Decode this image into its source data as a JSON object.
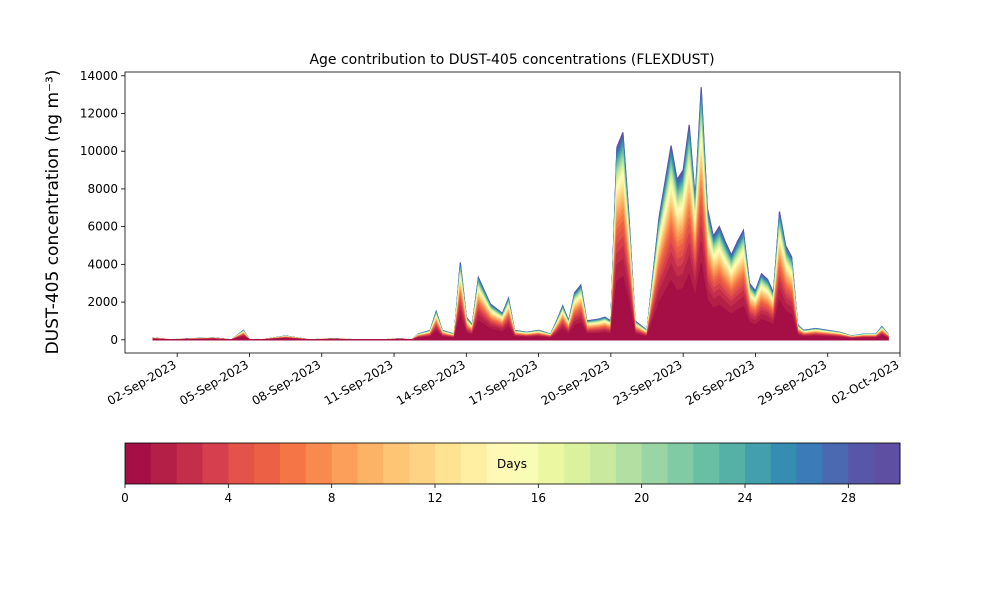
{
  "chart_data": {
    "type": "area",
    "title": "Age contribution to DUST-405 concentrations (FLEXDUST)",
    "ylabel": "DUST-405 concentration (ng m⁻³)",
    "xlabel": "",
    "ylim": [
      -700,
      14200
    ],
    "xlim": [
      "2023-08-30T20:00",
      "2023-10-02T00:00"
    ],
    "yticks": [
      0,
      2000,
      4000,
      6000,
      8000,
      10000,
      12000,
      14000
    ],
    "xtick_dates": [
      "2023-09-02",
      "2023-09-05",
      "2023-09-08",
      "2023-09-11",
      "2023-09-14",
      "2023-09-17",
      "2023-09-20",
      "2023-09-23",
      "2023-09-26",
      "2023-09-29",
      "2023-10-02"
    ],
    "xtick_labels": [
      "02-Sep-2023",
      "05-Sep-2023",
      "08-Sep-2023",
      "11-Sep-2023",
      "14-Sep-2023",
      "17-Sep-2023",
      "20-Sep-2023",
      "23-Sep-2023",
      "26-Sep-2023",
      "29-Sep-2023",
      "02-Oct-2023"
    ],
    "total": {
      "x": [
        "2023-09-01T00:00",
        "2023-09-01T18:00",
        "2023-09-02T12:00",
        "2023-09-03T12:00",
        "2023-09-04T06:00",
        "2023-09-04T18:00",
        "2023-09-05T00:00",
        "2023-09-05T12:00",
        "2023-09-06T12:00",
        "2023-09-07T12:00",
        "2023-09-08T12:00",
        "2023-09-09T12:00",
        "2023-09-10T12:00",
        "2023-09-11T06:00",
        "2023-09-11T18:00",
        "2023-09-12T00:00",
        "2023-09-12T12:00",
        "2023-09-12T18:00",
        "2023-09-13T00:00",
        "2023-09-13T12:00",
        "2023-09-13T18:00",
        "2023-09-14T00:00",
        "2023-09-14T06:00",
        "2023-09-14T12:00",
        "2023-09-15T00:00",
        "2023-09-15T12:00",
        "2023-09-15T18:00",
        "2023-09-16T00:00",
        "2023-09-16T12:00",
        "2023-09-17T00:00",
        "2023-09-17T12:00",
        "2023-09-17T18:00",
        "2023-09-18T00:00",
        "2023-09-18T06:00",
        "2023-09-18T12:00",
        "2023-09-18T18:00",
        "2023-09-19T00:00",
        "2023-09-19T12:00",
        "2023-09-19T18:00",
        "2023-09-20T00:00",
        "2023-09-20T06:00",
        "2023-09-20T12:00",
        "2023-09-20T18:00",
        "2023-09-21T00:00",
        "2023-09-21T12:00",
        "2023-09-22T00:00",
        "2023-09-22T06:00",
        "2023-09-22T12:00",
        "2023-09-22T18:00",
        "2023-09-23T00:00",
        "2023-09-23T06:00",
        "2023-09-23T12:00",
        "2023-09-23T18:00",
        "2023-09-24T00:00",
        "2023-09-24T06:00",
        "2023-09-24T12:00",
        "2023-09-24T18:00",
        "2023-09-25T00:00",
        "2023-09-25T06:00",
        "2023-09-25T12:00",
        "2023-09-25T18:00",
        "2023-09-26T00:00",
        "2023-09-26T06:00",
        "2023-09-26T12:00",
        "2023-09-26T18:00",
        "2023-09-27T00:00",
        "2023-09-27T06:00",
        "2023-09-27T12:00",
        "2023-09-27T18:00",
        "2023-09-28T00:00",
        "2023-09-28T12:00",
        "2023-09-29T00:00",
        "2023-09-29T12:00",
        "2023-09-30T00:00",
        "2023-09-30T12:00",
        "2023-10-01T00:00",
        "2023-10-01T06:00",
        "2023-10-01T12:00"
      ],
      "y": [
        100,
        0,
        50,
        100,
        0,
        500,
        0,
        0,
        200,
        0,
        50,
        0,
        0,
        50,
        0,
        300,
        500,
        1500,
        500,
        300,
        4100,
        1200,
        800,
        3300,
        1900,
        1400,
        2200,
        500,
        400,
        500,
        300,
        1000,
        1800,
        1000,
        2500,
        2900,
        1000,
        1100,
        1200,
        1000,
        10200,
        11000,
        6500,
        1000,
        500,
        6500,
        8400,
        10300,
        8500,
        9000,
        11400,
        7500,
        13400,
        7000,
        5500,
        6000,
        5200,
        4500,
        5200,
        5800,
        3000,
        2600,
        3500,
        3200,
        2500,
        6800,
        5000,
        4400,
        800,
        500,
        600,
        500,
        400,
        200,
        300,
        300,
        700,
        300
      ]
    },
    "colorbar": {
      "label": "Days",
      "min": 0,
      "max": 30,
      "bins": 30,
      "ticks": [
        0,
        4,
        8,
        12,
        16,
        20,
        24,
        28
      ],
      "colors": [
        "#a50f45",
        "#b41f48",
        "#c52e4a",
        "#d6404e",
        "#e35349",
        "#ec6146",
        "#f57547",
        "#f88a50",
        "#fb9f5a",
        "#fdb366",
        "#fec574",
        "#fed384",
        "#fee391",
        "#feefa3",
        "#fff9b5",
        "#f8fcb4",
        "#ecf7a2",
        "#dcf19d",
        "#c9e99e",
        "#b2e0a2",
        "#99d6a4",
        "#80cba4",
        "#69bfa4",
        "#55b0a6",
        "#439fac",
        "#358db2",
        "#3b7bb8",
        "#4a69b0",
        "#5756a8",
        "#5e4fa2"
      ]
    }
  }
}
